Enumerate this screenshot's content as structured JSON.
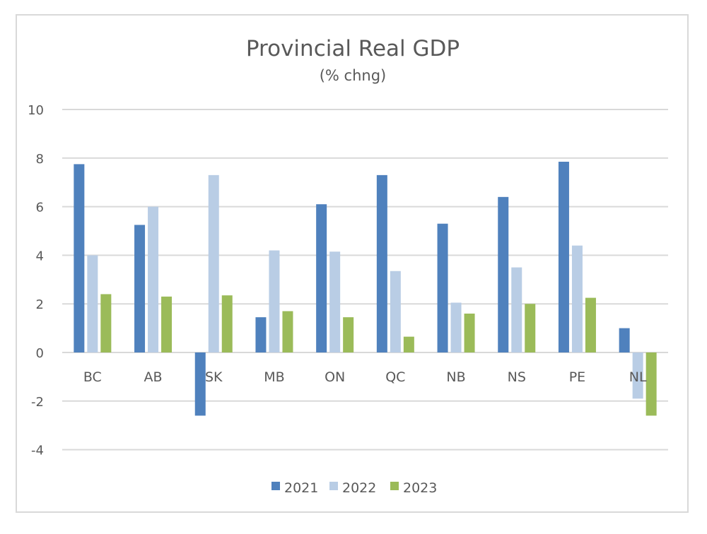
{
  "chart_data": {
    "type": "bar",
    "title": "Provincial Real GDP",
    "subtitle": "(% chng)",
    "categories": [
      "BC",
      "AB",
      "SK",
      "MB",
      "ON",
      "QC",
      "NB",
      "NS",
      "PE",
      "NL"
    ],
    "series": [
      {
        "name": "2021",
        "color": "#4f81bd",
        "values": [
          7.75,
          5.25,
          -2.6,
          1.45,
          6.1,
          7.3,
          5.3,
          6.4,
          7.85,
          1.0
        ]
      },
      {
        "name": "2022",
        "color": "#b9cde5",
        "values": [
          4.0,
          6.0,
          7.3,
          4.2,
          4.15,
          3.35,
          2.05,
          3.5,
          4.4,
          -1.9
        ]
      },
      {
        "name": "2023",
        "color": "#9bbb59",
        "values": [
          2.4,
          2.3,
          2.35,
          1.7,
          1.45,
          0.65,
          1.6,
          2.0,
          2.25,
          -2.6
        ]
      }
    ],
    "ylim": [
      -4,
      10
    ],
    "yticks": [
      10,
      8,
      6,
      4,
      2,
      0,
      -2,
      -4
    ],
    "grid": true,
    "legend": "bottom"
  }
}
